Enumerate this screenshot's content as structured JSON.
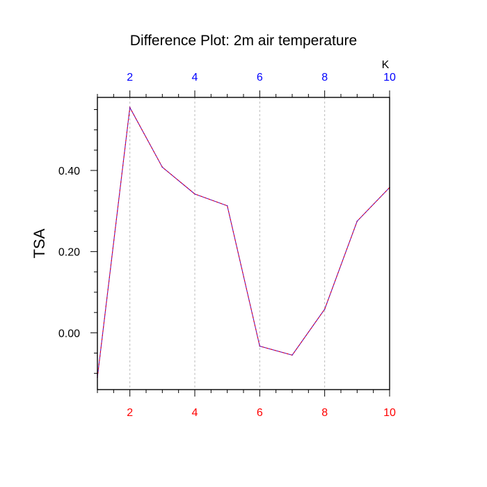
{
  "chart_data": {
    "type": "line",
    "title": "Difference Plot: 2m air temperature",
    "ylabel": "TSA",
    "units": "K",
    "xlim": [
      1,
      10
    ],
    "ylim": [
      -0.14,
      0.58
    ],
    "grid": "vertical-dashed",
    "x_ticks_major": [
      2,
      4,
      6,
      8,
      10
    ],
    "x_ticks_minor": [
      1,
      1.5,
      2.5,
      3,
      3.5,
      4.5,
      5,
      5.5,
      6.5,
      7,
      7.5,
      8.5,
      9,
      9.5
    ],
    "y_ticks_major": [
      0.0,
      0.2,
      0.4
    ],
    "y_ticks_minor": [
      -0.1,
      -0.05,
      0.05,
      0.1,
      0.15,
      0.25,
      0.3,
      0.35,
      0.45,
      0.5,
      0.55
    ],
    "y_tick_labels": [
      "0.00",
      "0.20",
      "0.40"
    ],
    "top_tick_labels": [
      "2",
      "4",
      "6",
      "8",
      "10"
    ],
    "bottom_tick_labels": [
      "2",
      "4",
      "6",
      "8",
      "10"
    ],
    "colors": {
      "top_labels": "#0000ff",
      "bottom_labels": "#ff0000",
      "line": "#6a0dad",
      "line_dash": "#ff0000",
      "grid": "#bbbbbb"
    },
    "series": [
      {
        "x": [
          1,
          2,
          3,
          4,
          5,
          6,
          7,
          8,
          9,
          10
        ],
        "values": [
          -0.11,
          0.555,
          0.408,
          0.342,
          0.313,
          -0.033,
          -0.055,
          0.058,
          0.275,
          0.358
        ]
      }
    ]
  }
}
